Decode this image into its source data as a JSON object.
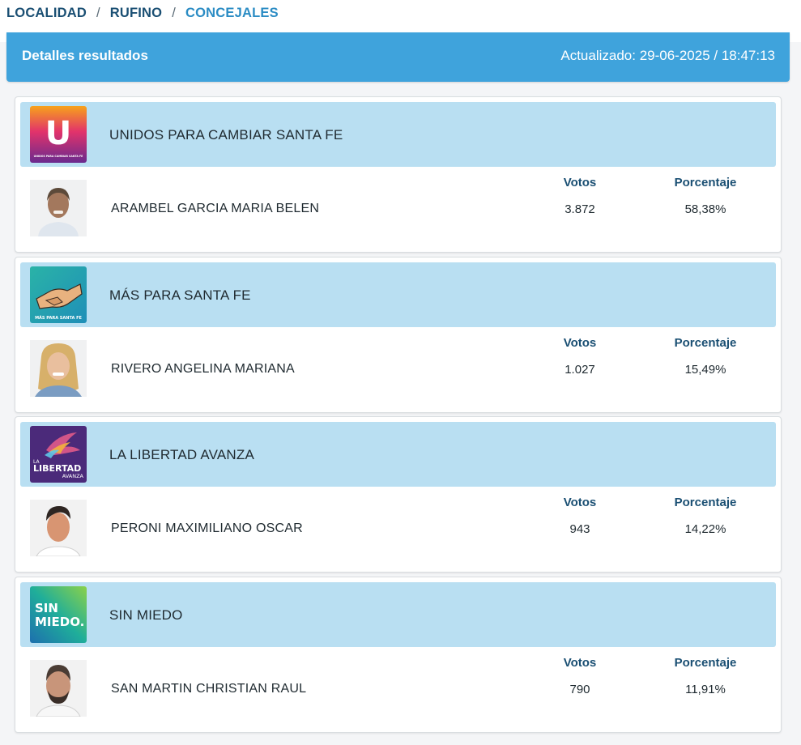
{
  "breadcrumb": {
    "items": [
      "LOCALIDAD",
      "RUFINO",
      "CONCEJALES"
    ],
    "separator": "/"
  },
  "header": {
    "title": "Detalles resultados",
    "updated": "Actualizado: 29-06-2025 / 18:47:13"
  },
  "labels": {
    "votes": "Votos",
    "percentage": "Porcentaje"
  },
  "results": [
    {
      "party": "UNIDOS PARA CAMBIAR SANTA FE",
      "logo": {
        "icon": "unidos-logo-icon",
        "letter": "U",
        "caption": "UNIDOS PARA CAMBIAR SANTA FE"
      },
      "candidate": "ARAMBEL GARCIA MARIA BELEN",
      "votes": "3.872",
      "percentage": "58,38%"
    },
    {
      "party": "MÁS PARA SANTA FE",
      "logo": {
        "icon": "handshake-logo-icon",
        "caption": "MÁS PARA SANTA FE"
      },
      "candidate": "RIVERO ANGELINA MARIANA",
      "votes": "1.027",
      "percentage": "15,49%"
    },
    {
      "party": "LA LIBERTAD AVANZA",
      "logo": {
        "icon": "libertad-avanza-logo-icon",
        "line1": "LA",
        "line2": "LIBERTAD",
        "line3": "AVANZA"
      },
      "candidate": "PERONI MAXIMILIANO OSCAR",
      "votes": "943",
      "percentage": "14,22%"
    },
    {
      "party": "SIN MIEDO",
      "logo": {
        "icon": "sin-miedo-logo-icon",
        "line1": "SIN",
        "line2": "MIEDO."
      },
      "candidate": "SAN MARTIN CHRISTIAN RAUL",
      "votes": "790",
      "percentage": "11,91%"
    }
  ],
  "colors": {
    "header_bg": "#3fa3dc",
    "party_row_bg": "#b9dff2",
    "label_color": "#1a4f73",
    "breadcrumb_current": "#2b8cc4"
  }
}
